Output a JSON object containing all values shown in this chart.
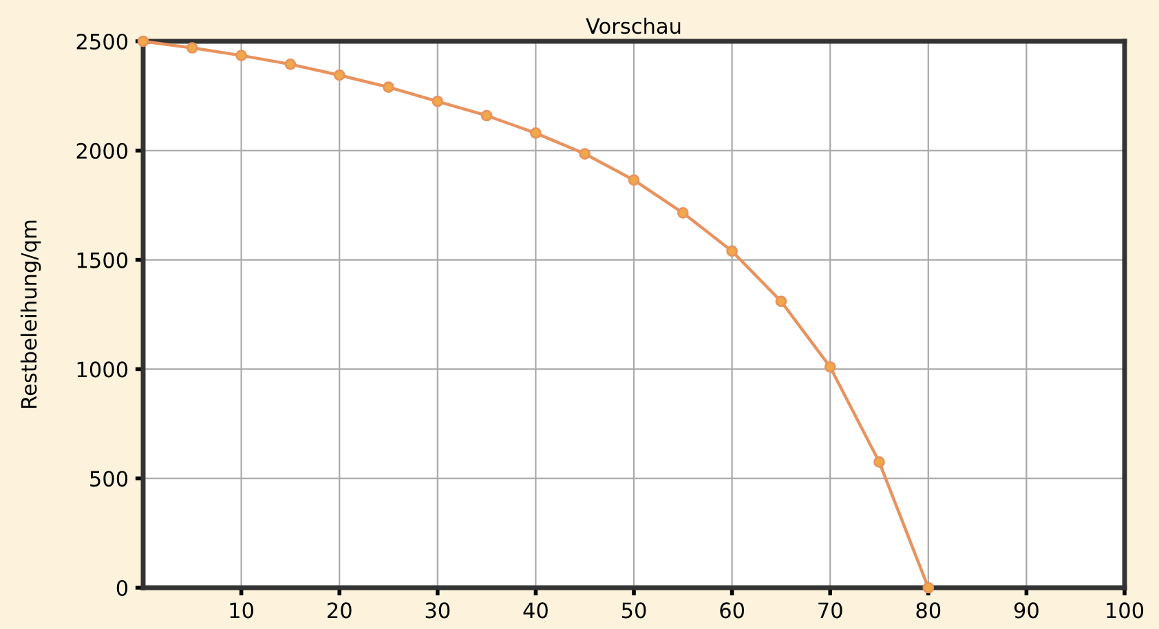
{
  "chart_data": {
    "type": "line",
    "title": "Vorschau",
    "ylabel": "Restbeleihung/qm",
    "x": [
      0,
      5,
      10,
      15,
      20,
      25,
      30,
      35,
      40,
      45,
      50,
      55,
      60,
      65,
      70,
      75,
      80
    ],
    "series": [
      {
        "color": "#e8935f",
        "values": [
          2500,
          2470,
          2435,
          2395,
          2345,
          2290,
          2225,
          2160,
          2080,
          1985,
          1865,
          1715,
          1540,
          1310,
          1010,
          575,
          0
        ]
      }
    ],
    "marker": "circle",
    "xlim": [
      0,
      100
    ],
    "xticks": [
      10,
      20,
      30,
      40,
      50,
      60,
      70,
      80,
      90,
      100
    ],
    "ylim": [
      0,
      2500
    ],
    "yticks": [
      0,
      500,
      1000,
      1500,
      2000,
      2500
    ],
    "grid": true,
    "legend": false
  }
}
